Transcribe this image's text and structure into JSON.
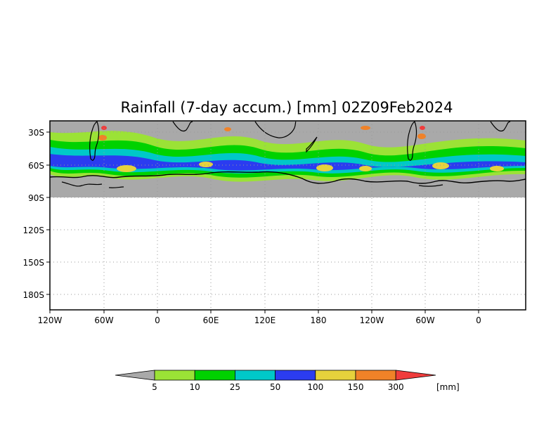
{
  "title": "Rainfall (7-day accum.) [mm] 02Z09Feb2024",
  "map": {
    "variable": "Rainfall (7-day accum.)",
    "units": "[mm]",
    "valid_time": "02Z09Feb2024",
    "lat_labels": [
      "30S",
      "60S",
      "90S",
      "120S",
      "150S",
      "180S"
    ],
    "lon_labels": [
      "120W",
      "60W",
      "0",
      "60E",
      "120E",
      "180",
      "120W",
      "60W",
      "0"
    ],
    "no_data_color": "#a9a9a9",
    "land_outline_color": "#000000",
    "grid_style": "dotted",
    "data_band": "30S to 90S"
  },
  "colorbar": {
    "unit_label": "[mm]",
    "labels": [
      "5",
      "10",
      "25",
      "50",
      "100",
      "150",
      "300"
    ],
    "colors": [
      "#a9a9a9",
      "#9be236",
      "#00d200",
      "#00c8c8",
      "#2b3cf0",
      "#e6d23c",
      "#f08228",
      "#f03c3c"
    ]
  }
}
